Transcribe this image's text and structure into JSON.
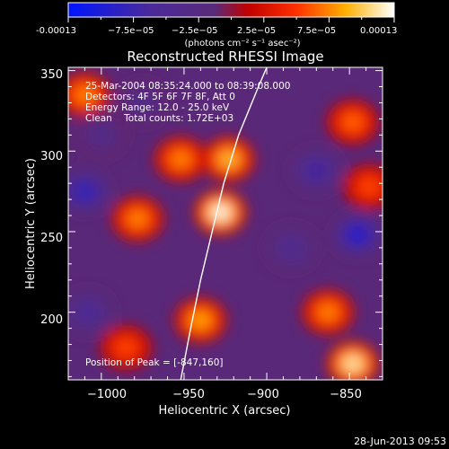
{
  "colorbar": {
    "ticks": [
      "-0.00013",
      "−7.5e−05",
      "−2.5e−05",
      "2.5e−05",
      "7.5e−05",
      "0.00013"
    ],
    "label": "(photons cm⁻² s⁻¹ asec⁻²)"
  },
  "chart_data": {
    "type": "heatmap",
    "title": "Reconstructed RHESSI Image",
    "xlabel": "Heliocentric X (arcsec)",
    "ylabel": "Heliocentric Y (arcsec)",
    "xlim": [
      -1020,
      -830
    ],
    "ylim": [
      158,
      352
    ],
    "x_ticks": [
      -1000,
      -950,
      -900,
      -850
    ],
    "x_tick_labels": [
      "−1000",
      "−950",
      "−900",
      "−850"
    ],
    "y_ticks": [
      200,
      250,
      300,
      350
    ],
    "y_tick_labels": [
      "200",
      "250",
      "300",
      "350"
    ],
    "colorscale": "blue-purple-red-orange-yellow-white",
    "value_range": [
      -0.00013,
      0.00013
    ],
    "annotations": [
      "25-Mar-2004 08:35:24.000 to 08:39:08.000",
      "Detectors: 4F 5F 6F 7F 8F, Att 0",
      "Energy Range: 12.0 - 25.0 keV",
      "Clean    Total counts: 1.72E+03"
    ],
    "peak_label": "Position of Peak = [-847,160]",
    "peak": [
      -847,
      160
    ],
    "limb_curve": [
      [
        -952,
        158
      ],
      [
        -946,
        190
      ],
      [
        -940,
        220
      ],
      [
        -933,
        250
      ],
      [
        -926,
        280
      ],
      [
        -917,
        310
      ],
      [
        -905,
        340
      ],
      [
        -900,
        352
      ]
    ],
    "sources": [
      {
        "x": -928,
        "y": 262,
        "value": 0.00013
      },
      {
        "x": -923,
        "y": 295,
        "value": 0.0001
      },
      {
        "x": -952,
        "y": 295,
        "value": 8e-05
      },
      {
        "x": -978,
        "y": 258,
        "value": 8e-05
      },
      {
        "x": -940,
        "y": 195,
        "value": 9e-05
      },
      {
        "x": -848,
        "y": 168,
        "value": 0.00012
      },
      {
        "x": -863,
        "y": 200,
        "value": 8e-05
      },
      {
        "x": -838,
        "y": 278,
        "value": 6e-05
      },
      {
        "x": -848,
        "y": 318,
        "value": 7e-05
      },
      {
        "x": -1010,
        "y": 335,
        "value": 8e-05
      },
      {
        "x": -985,
        "y": 178,
        "value": 6e-05
      },
      {
        "x": -1010,
        "y": 275,
        "value": -9e-05
      },
      {
        "x": -845,
        "y": 248,
        "value": -0.0001
      },
      {
        "x": -870,
        "y": 288,
        "value": -7e-05
      },
      {
        "x": -885,
        "y": 240,
        "value": -5e-05
      },
      {
        "x": -1008,
        "y": 200,
        "value": -6e-05
      },
      {
        "x": -1000,
        "y": 310,
        "value": -4e-05
      },
      {
        "x": -975,
        "y": 330,
        "value": -4e-05
      }
    ]
  },
  "timestamp": "28-Jun-2013 09:53"
}
